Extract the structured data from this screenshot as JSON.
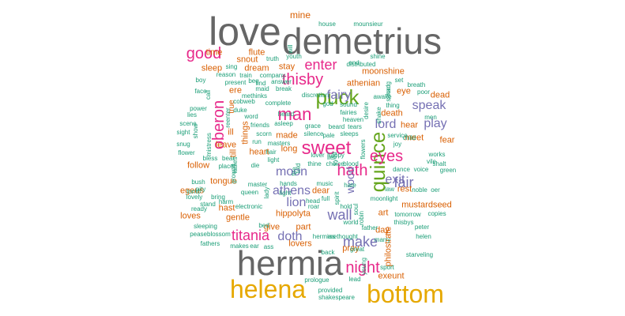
{
  "word_cloud": {
    "colors": {
      "gray": "#666666",
      "gold": "#e6a800",
      "pink": "#e7298a",
      "purple": "#7570b3",
      "green": "#66a61e",
      "orange": "#d95f02",
      "teal": "#1b9e77"
    },
    "words": [
      {
        "text": "love",
        "color": "gray"
      },
      {
        "text": "demetrius",
        "color": "gray"
      },
      {
        "text": "hermia",
        "color": "gray"
      },
      {
        "text": "helena",
        "color": "gold"
      },
      {
        "text": "bottom",
        "color": "gold"
      },
      {
        "text": "puck",
        "color": "green"
      },
      {
        "text": "quince",
        "color": "green"
      },
      {
        "text": "sweet",
        "color": "pink"
      },
      {
        "text": "man",
        "color": "pink"
      },
      {
        "text": "good",
        "color": "pink"
      },
      {
        "text": "thisby",
        "color": "pink"
      },
      {
        "text": "enter",
        "color": "pink"
      },
      {
        "text": "oberon",
        "color": "pink"
      },
      {
        "text": "hath",
        "color": "pink"
      },
      {
        "text": "eyes",
        "color": "pink"
      },
      {
        "text": "night",
        "color": "pink"
      },
      {
        "text": "titania",
        "color": "pink"
      },
      {
        "text": "fair",
        "color": "purple"
      },
      {
        "text": "exit",
        "color": "purple"
      },
      {
        "text": "play",
        "color": "purple"
      },
      {
        "text": "speak",
        "color": "purple"
      },
      {
        "text": "fairy",
        "color": "purple"
      },
      {
        "text": "lord",
        "color": "purple"
      },
      {
        "text": "wall",
        "color": "purple"
      },
      {
        "text": "moon",
        "color": "purple"
      },
      {
        "text": "make",
        "color": "purple"
      },
      {
        "text": "lion",
        "color": "purple"
      },
      {
        "text": "doth",
        "color": "purple"
      },
      {
        "text": "athens",
        "color": "purple"
      },
      {
        "text": "wood",
        "color": "purple"
      },
      {
        "text": "mine",
        "color": "orange"
      },
      {
        "text": "time",
        "color": "orange"
      },
      {
        "text": "flute",
        "color": "orange"
      },
      {
        "text": "snout",
        "color": "orange"
      },
      {
        "text": "sleep",
        "color": "orange"
      },
      {
        "text": "dream",
        "color": "orange"
      },
      {
        "text": "stay",
        "color": "orange"
      },
      {
        "text": "athenian",
        "color": "orange"
      },
      {
        "text": "moonshine",
        "color": "orange"
      },
      {
        "text": "eye",
        "color": "orange"
      },
      {
        "text": "dead",
        "color": "orange"
      },
      {
        "text": "ere",
        "color": "orange"
      },
      {
        "text": "true",
        "color": "orange"
      },
      {
        "text": "ill",
        "color": "orange"
      },
      {
        "text": "hear",
        "color": "orange"
      },
      {
        "text": "things",
        "color": "orange"
      },
      {
        "text": "leave",
        "color": "orange"
      },
      {
        "text": "made",
        "color": "orange"
      },
      {
        "text": "long",
        "color": "orange"
      },
      {
        "text": "heart",
        "color": "orange"
      },
      {
        "text": "follow",
        "color": "orange"
      },
      {
        "text": "meet",
        "color": "orange"
      },
      {
        "text": "fear",
        "color": "orange"
      },
      {
        "text": "egeus",
        "color": "orange"
      },
      {
        "text": "hast",
        "color": "orange"
      },
      {
        "text": "dear",
        "color": "orange"
      },
      {
        "text": "rest",
        "color": "orange"
      },
      {
        "text": "hippolyta",
        "color": "orange"
      },
      {
        "text": "mustardseed",
        "color": "orange"
      },
      {
        "text": "loves",
        "color": "orange"
      },
      {
        "text": "gentle",
        "color": "orange"
      },
      {
        "text": "give",
        "color": "orange"
      },
      {
        "text": "part",
        "color": "orange"
      },
      {
        "text": "art",
        "color": "orange"
      },
      {
        "text": "day",
        "color": "orange"
      },
      {
        "text": "lovers",
        "color": "orange"
      },
      {
        "text": "pray",
        "color": "orange"
      },
      {
        "text": "philostrate",
        "color": "orange"
      },
      {
        "text": "exeunt",
        "color": "orange"
      },
      {
        "text": "death",
        "color": "orange"
      },
      {
        "text": "till",
        "color": "orange"
      },
      {
        "text": "tongue",
        "color": "orange"
      },
      {
        "text": "house",
        "color": "teal"
      },
      {
        "text": "mounsieur",
        "color": "teal"
      },
      {
        "text": "shine",
        "color": "teal"
      },
      {
        "text": "youth",
        "color": "teal"
      },
      {
        "text": "truth",
        "color": "teal"
      },
      {
        "text": "sing",
        "color": "teal"
      },
      {
        "text": "reason",
        "color": "teal"
      },
      {
        "text": "train",
        "color": "teal"
      },
      {
        "text": "company",
        "color": "teal"
      },
      {
        "text": "find",
        "color": "teal"
      },
      {
        "text": "beg",
        "color": "teal"
      },
      {
        "text": "end",
        "color": "teal"
      },
      {
        "text": "distributed",
        "color": "teal"
      },
      {
        "text": "boy",
        "color": "teal"
      },
      {
        "text": "present",
        "color": "teal"
      },
      {
        "text": "answer",
        "color": "teal"
      },
      {
        "text": "maid",
        "color": "teal"
      },
      {
        "text": "break",
        "color": "teal"
      },
      {
        "text": "set",
        "color": "teal"
      },
      {
        "text": "breath",
        "color": "teal"
      },
      {
        "text": "face",
        "color": "teal"
      },
      {
        "text": "methinks",
        "color": "teal"
      },
      {
        "text": "discretion",
        "color": "teal"
      },
      {
        "text": "awake",
        "color": "teal"
      },
      {
        "text": "poor",
        "color": "teal"
      },
      {
        "text": "power",
        "color": "teal"
      },
      {
        "text": "cobweb",
        "color": "teal"
      },
      {
        "text": "complete",
        "color": "teal"
      },
      {
        "text": "god",
        "color": "teal"
      },
      {
        "text": "sound",
        "color": "teal"
      },
      {
        "text": "thing",
        "color": "teal"
      },
      {
        "text": "lies",
        "color": "teal"
      },
      {
        "text": "duke",
        "color": "teal"
      },
      {
        "text": "heard",
        "color": "teal"
      },
      {
        "text": "fairies",
        "color": "teal"
      },
      {
        "text": "heaven",
        "color": "teal"
      },
      {
        "text": "men",
        "color": "teal"
      },
      {
        "text": "scene",
        "color": "teal"
      },
      {
        "text": "word",
        "color": "teal"
      },
      {
        "text": "asleep",
        "color": "teal"
      },
      {
        "text": "grace",
        "color": "teal"
      },
      {
        "text": "beard",
        "color": "teal"
      },
      {
        "text": "tears",
        "color": "teal"
      },
      {
        "text": "sight",
        "color": "teal"
      },
      {
        "text": "friends",
        "color": "teal"
      },
      {
        "text": "scorn",
        "color": "teal"
      },
      {
        "text": "silence",
        "color": "teal"
      },
      {
        "text": "pale",
        "color": "teal"
      },
      {
        "text": "sleeps",
        "color": "teal"
      },
      {
        "text": "service",
        "color": "teal"
      },
      {
        "text": "child",
        "color": "teal"
      },
      {
        "text": "snug",
        "color": "teal"
      },
      {
        "text": "mistress",
        "color": "teal"
      },
      {
        "text": "masters",
        "color": "teal"
      },
      {
        "text": "run",
        "color": "teal"
      },
      {
        "text": "joy",
        "color": "teal"
      },
      {
        "text": "flower",
        "color": "teal"
      },
      {
        "text": "hair",
        "color": "teal"
      },
      {
        "text": "lover",
        "color": "teal"
      },
      {
        "text": "happy",
        "color": "teal"
      },
      {
        "text": "works",
        "color": "teal"
      },
      {
        "text": "bless",
        "color": "teal"
      },
      {
        "text": "bear",
        "color": "teal"
      },
      {
        "text": "die",
        "color": "teal"
      },
      {
        "text": "light",
        "color": "teal"
      },
      {
        "text": "thine",
        "color": "teal"
      },
      {
        "text": "choice",
        "color": "teal"
      },
      {
        "text": "blood",
        "color": "teal"
      },
      {
        "text": "shalt",
        "color": "teal"
      },
      {
        "text": "place",
        "color": "teal"
      },
      {
        "text": "dance",
        "color": "teal"
      },
      {
        "text": "voice",
        "color": "teal"
      },
      {
        "text": "green",
        "color": "teal"
      },
      {
        "text": "master",
        "color": "teal"
      },
      {
        "text": "hands",
        "color": "teal"
      },
      {
        "text": "music",
        "color": "teal"
      },
      {
        "text": "hate",
        "color": "teal"
      },
      {
        "text": "law",
        "color": "teal"
      },
      {
        "text": "noble",
        "color": "teal"
      },
      {
        "text": "oer",
        "color": "teal"
      },
      {
        "text": "bush",
        "color": "teal"
      },
      {
        "text": "tomb",
        "color": "teal"
      },
      {
        "text": "lovely",
        "color": "teal"
      },
      {
        "text": "bring",
        "color": "teal"
      },
      {
        "text": "queen",
        "color": "teal"
      },
      {
        "text": "stand",
        "color": "teal"
      },
      {
        "text": "harm",
        "color": "teal"
      },
      {
        "text": "head",
        "color": "teal"
      },
      {
        "text": "full",
        "color": "teal"
      },
      {
        "text": "moonlight",
        "color": "teal"
      },
      {
        "text": "light",
        "color": "teal"
      },
      {
        "text": "ready",
        "color": "teal"
      },
      {
        "text": "electronic",
        "color": "teal"
      },
      {
        "text": "roar",
        "color": "teal"
      },
      {
        "text": "hold",
        "color": "teal"
      },
      {
        "text": "tomorrow",
        "color": "teal"
      },
      {
        "text": "copies",
        "color": "teal"
      },
      {
        "text": "world",
        "color": "teal"
      },
      {
        "text": "bed",
        "color": "teal"
      },
      {
        "text": "sleeping",
        "color": "teal"
      },
      {
        "text": "peter",
        "color": "teal"
      },
      {
        "text": "peaseblossom",
        "color": "teal"
      },
      {
        "text": "hermias",
        "color": "teal"
      },
      {
        "text": "methought",
        "color": "teal"
      },
      {
        "text": "father",
        "color": "teal"
      },
      {
        "text": "marry",
        "color": "teal"
      },
      {
        "text": "helen",
        "color": "teal"
      },
      {
        "text": "fathers",
        "color": "teal"
      },
      {
        "text": "makes",
        "color": "teal"
      },
      {
        "text": "ear",
        "color": "teal"
      },
      {
        "text": "ass",
        "color": "teal"
      },
      {
        "text": "great",
        "color": "teal"
      },
      {
        "text": "starveling",
        "color": "teal"
      },
      {
        "text": "back",
        "color": "teal"
      },
      {
        "text": "sport",
        "color": "teal"
      },
      {
        "text": "prologue",
        "color": "teal"
      },
      {
        "text": "lead",
        "color": "teal"
      },
      {
        "text": "provided",
        "color": "teal"
      },
      {
        "text": "shakespeare",
        "color": "teal"
      },
      {
        "text": "thisbys",
        "color": "teal"
      },
      {
        "text": "will",
        "color": "teal"
      },
      {
        "text": "young",
        "color": "teal"
      },
      {
        "text": "hang",
        "color": "teal"
      },
      {
        "text": "sword",
        "color": "teal"
      },
      {
        "text": "desire",
        "color": "teal"
      },
      {
        "text": "shake",
        "color": "teal"
      },
      {
        "text": "pity",
        "color": "teal"
      },
      {
        "text": "show",
        "color": "teal"
      },
      {
        "text": "call",
        "color": "teal"
      },
      {
        "text": "ladies",
        "color": "teal"
      },
      {
        "text": "ground",
        "color": "teal"
      },
      {
        "text": "fire",
        "color": "teal"
      },
      {
        "text": "told",
        "color": "teal"
      },
      {
        "text": "spirit",
        "color": "teal"
      },
      {
        "text": "flowers",
        "color": "teal"
      },
      {
        "text": "lady",
        "color": "teal"
      },
      {
        "text": "eyed",
        "color": "teal"
      },
      {
        "text": "soul",
        "color": "teal"
      },
      {
        "text": "robin",
        "color": "teal"
      },
      {
        "text": "vile",
        "color": "teal"
      },
      {
        "text": "reenter",
        "color": "teal"
      },
      {
        "text": "lie",
        "color": "teal"
      }
    ]
  }
}
